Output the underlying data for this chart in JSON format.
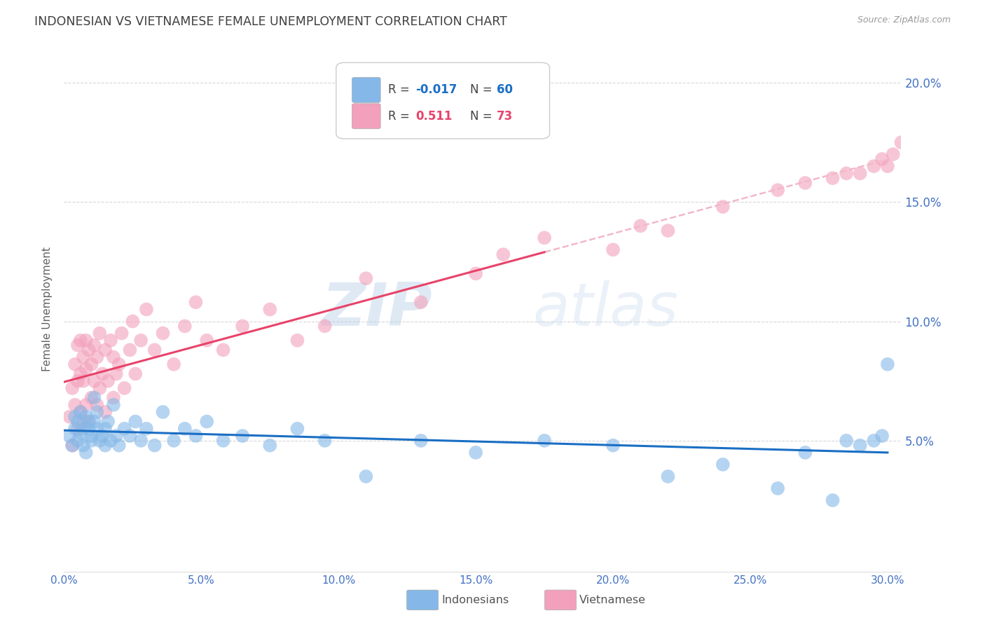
{
  "title": "INDONESIAN VS VIETNAMESE FEMALE UNEMPLOYMENT CORRELATION CHART",
  "source": "Source: ZipAtlas.com",
  "ylabel": "Female Unemployment",
  "x_tick_labels": [
    "0.0%",
    "5.0%",
    "10.0%",
    "15.0%",
    "20.0%",
    "25.0%",
    "30.0%"
  ],
  "x_tick_values": [
    0.0,
    0.05,
    0.1,
    0.15,
    0.2,
    0.25,
    0.3
  ],
  "y_tick_labels": [
    "5.0%",
    "10.0%",
    "15.0%",
    "20.0%"
  ],
  "y_tick_values": [
    0.05,
    0.1,
    0.15,
    0.2
  ],
  "xlim": [
    0.0,
    0.305
  ],
  "ylim": [
    -0.005,
    0.215
  ],
  "watermark_zip": "ZIP",
  "watermark_atlas": "atlas",
  "legend_indonesians": "Indonesians",
  "legend_vietnamese": "Vietnamese",
  "indonesian_color": "#85b8e8",
  "vietnamese_color": "#f2a0bb",
  "indonesian_line_color": "#1a6fc4",
  "vietnamese_line_color": "#e8436a",
  "dashed_line_color": "#f2b8c8",
  "background_color": "#ffffff",
  "grid_color": "#d8d8d8",
  "axis_color": "#4472c4",
  "title_color": "#404040",
  "label_color": "#606060",
  "indonesians_x": [
    0.002,
    0.003,
    0.004,
    0.004,
    0.005,
    0.005,
    0.006,
    0.006,
    0.007,
    0.007,
    0.008,
    0.008,
    0.009,
    0.009,
    0.01,
    0.01,
    0.011,
    0.011,
    0.012,
    0.012,
    0.013,
    0.014,
    0.015,
    0.015,
    0.016,
    0.017,
    0.018,
    0.019,
    0.02,
    0.022,
    0.024,
    0.026,
    0.028,
    0.03,
    0.033,
    0.036,
    0.04,
    0.044,
    0.048,
    0.052,
    0.058,
    0.065,
    0.075,
    0.085,
    0.095,
    0.11,
    0.13,
    0.15,
    0.175,
    0.2,
    0.22,
    0.24,
    0.26,
    0.27,
    0.28,
    0.285,
    0.29,
    0.295,
    0.298,
    0.3
  ],
  "indonesians_y": [
    0.052,
    0.048,
    0.055,
    0.06,
    0.05,
    0.058,
    0.053,
    0.062,
    0.048,
    0.055,
    0.06,
    0.045,
    0.055,
    0.058,
    0.05,
    0.052,
    0.068,
    0.058,
    0.055,
    0.062,
    0.05,
    0.052,
    0.048,
    0.055,
    0.058,
    0.05,
    0.065,
    0.052,
    0.048,
    0.055,
    0.052,
    0.058,
    0.05,
    0.055,
    0.048,
    0.062,
    0.05,
    0.055,
    0.052,
    0.058,
    0.05,
    0.052,
    0.048,
    0.055,
    0.05,
    0.035,
    0.05,
    0.045,
    0.05,
    0.048,
    0.035,
    0.04,
    0.03,
    0.045,
    0.025,
    0.05,
    0.048,
    0.05,
    0.052,
    0.082
  ],
  "vietnamese_x": [
    0.002,
    0.003,
    0.003,
    0.004,
    0.004,
    0.005,
    0.005,
    0.005,
    0.006,
    0.006,
    0.006,
    0.007,
    0.007,
    0.007,
    0.008,
    0.008,
    0.008,
    0.009,
    0.009,
    0.01,
    0.01,
    0.011,
    0.011,
    0.012,
    0.012,
    0.013,
    0.013,
    0.014,
    0.015,
    0.015,
    0.016,
    0.017,
    0.018,
    0.018,
    0.019,
    0.02,
    0.021,
    0.022,
    0.024,
    0.025,
    0.026,
    0.028,
    0.03,
    0.033,
    0.036,
    0.04,
    0.044,
    0.048,
    0.052,
    0.058,
    0.065,
    0.075,
    0.085,
    0.095,
    0.11,
    0.13,
    0.15,
    0.16,
    0.175,
    0.2,
    0.21,
    0.22,
    0.24,
    0.26,
    0.27,
    0.28,
    0.285,
    0.29,
    0.295,
    0.298,
    0.3,
    0.302,
    0.305
  ],
  "vietnamese_y": [
    0.06,
    0.072,
    0.048,
    0.065,
    0.082,
    0.055,
    0.075,
    0.09,
    0.062,
    0.078,
    0.092,
    0.058,
    0.075,
    0.085,
    0.065,
    0.08,
    0.092,
    0.058,
    0.088,
    0.068,
    0.082,
    0.075,
    0.09,
    0.065,
    0.085,
    0.072,
    0.095,
    0.078,
    0.062,
    0.088,
    0.075,
    0.092,
    0.068,
    0.085,
    0.078,
    0.082,
    0.095,
    0.072,
    0.088,
    0.1,
    0.078,
    0.092,
    0.105,
    0.088,
    0.095,
    0.082,
    0.098,
    0.108,
    0.092,
    0.088,
    0.098,
    0.105,
    0.092,
    0.098,
    0.118,
    0.108,
    0.12,
    0.128,
    0.135,
    0.13,
    0.14,
    0.138,
    0.148,
    0.155,
    0.158,
    0.16,
    0.162,
    0.162,
    0.165,
    0.168,
    0.165,
    0.17,
    0.175
  ]
}
